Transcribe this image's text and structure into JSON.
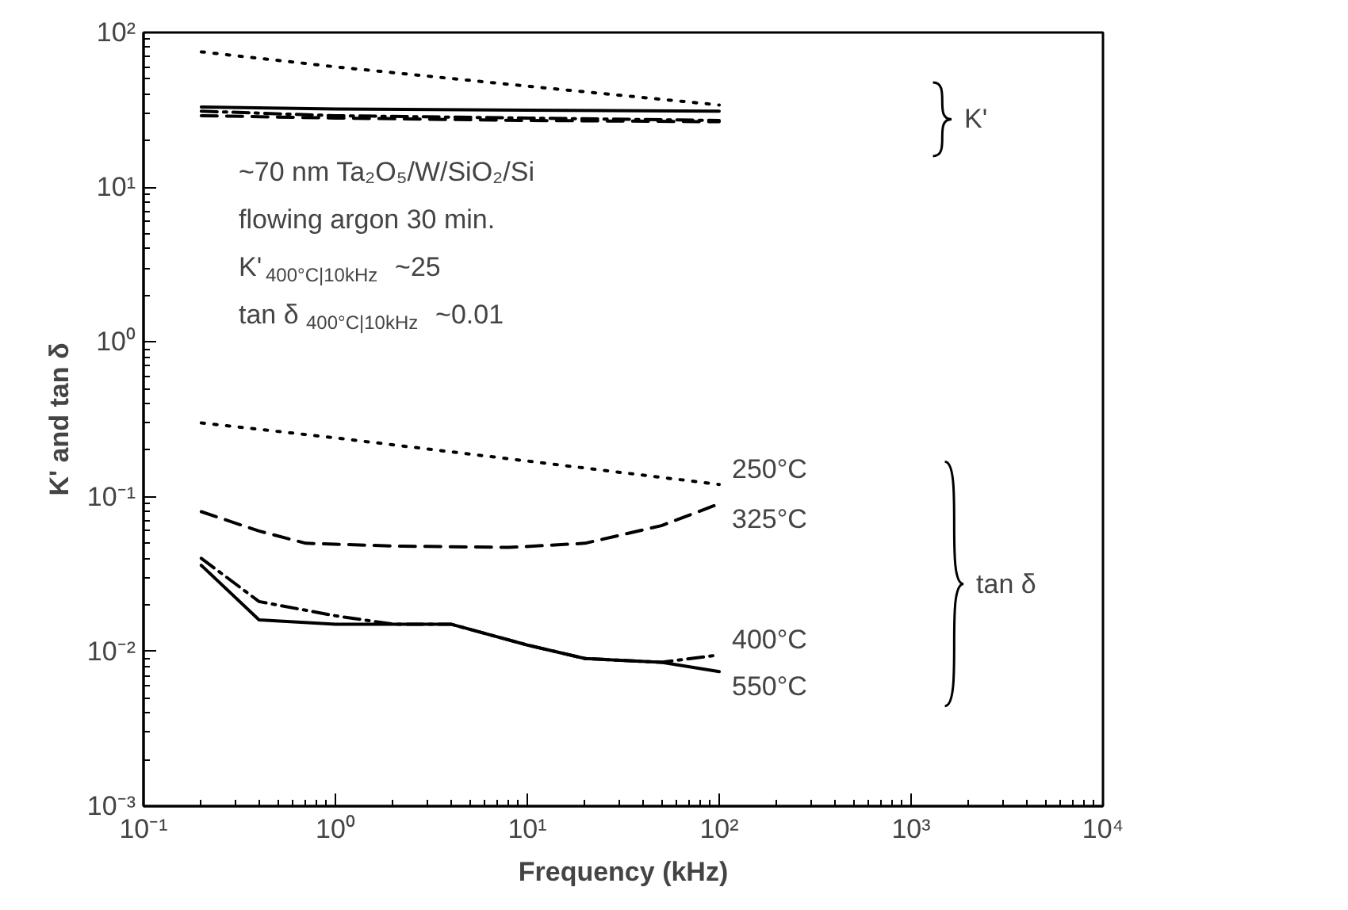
{
  "chart_data": {
    "type": "line",
    "xlabel": "Frequency (kHz)",
    "ylabel": "K' and tan δ",
    "log": "xy",
    "grid": false,
    "xlim": [
      0.1,
      10000
    ],
    "ylim": [
      0.001,
      100
    ],
    "xticks": [
      {
        "value": 0.1,
        "label": "10⁻¹"
      },
      {
        "value": 1,
        "label": "10⁰"
      },
      {
        "value": 10,
        "label": "10¹"
      },
      {
        "value": 100,
        "label": "10²"
      },
      {
        "value": 1000,
        "label": "10³"
      },
      {
        "value": 10000,
        "label": "10⁴"
      }
    ],
    "yticks": [
      {
        "value": 0.001,
        "label": "10⁻³"
      },
      {
        "value": 0.01,
        "label": "10⁻²"
      },
      {
        "value": 0.1,
        "label": "10⁻¹"
      },
      {
        "value": 1,
        "label": "10⁰"
      },
      {
        "value": 10,
        "label": "10¹"
      },
      {
        "value": 100,
        "label": "10²"
      }
    ],
    "series": [
      {
        "color": "#000000",
        "line_style": "dotted",
        "x": [
          0.2,
          1,
          10,
          100
        ],
        "values": [
          75,
          60,
          45,
          34
        ]
      },
      {
        "color": "#000000",
        "line_style": "dashed",
        "x": [
          0.2,
          1,
          10,
          100
        ],
        "values": [
          29,
          28,
          27,
          26.5
        ]
      },
      {
        "color": "#000000",
        "line_style": "dashdot",
        "x": [
          0.2,
          1,
          10,
          100
        ],
        "values": [
          31,
          29,
          28,
          27
        ]
      },
      {
        "color": "#000000",
        "line_style": "solid",
        "x": [
          0.2,
          1,
          10,
          100
        ],
        "values": [
          33,
          32,
          31.5,
          31
        ]
      },
      {
        "name": "250°C",
        "color": "#000000",
        "line_style": "dotted",
        "x": [
          0.2,
          1,
          10,
          100
        ],
        "values": [
          0.3,
          0.24,
          0.17,
          0.12
        ]
      },
      {
        "name": "325°C",
        "color": "#000000",
        "line_style": "dashed",
        "x": [
          0.2,
          0.4,
          0.7,
          2,
          8,
          20,
          50,
          100
        ],
        "values": [
          0.08,
          0.06,
          0.05,
          0.048,
          0.047,
          0.05,
          0.065,
          0.09
        ]
      },
      {
        "name": "400°C",
        "color": "#000000",
        "line_style": "dashdot",
        "x": [
          0.2,
          0.4,
          1,
          2,
          4,
          10,
          20,
          50,
          100
        ],
        "values": [
          0.04,
          0.021,
          0.017,
          0.015,
          0.015,
          0.011,
          0.009,
          0.0085,
          0.0095
        ]
      },
      {
        "name": "550°C",
        "color": "#000000",
        "line_style": "solid",
        "x": [
          0.2,
          0.4,
          1,
          4,
          10,
          20,
          50,
          100
        ],
        "values": [
          0.036,
          0.016,
          0.015,
          0.015,
          0.011,
          0.009,
          0.0085,
          0.0074
        ]
      }
    ],
    "annotations": [
      "~70 nm Ta₂O₅/W/SiO₂/Si",
      "flowing argon 30 min.",
      "K'$_{400°C|10kHz}$~25",
      "tan δ$_{400°C|10kHz}$~0.01",
      "K'",
      "tan δ"
    ]
  }
}
